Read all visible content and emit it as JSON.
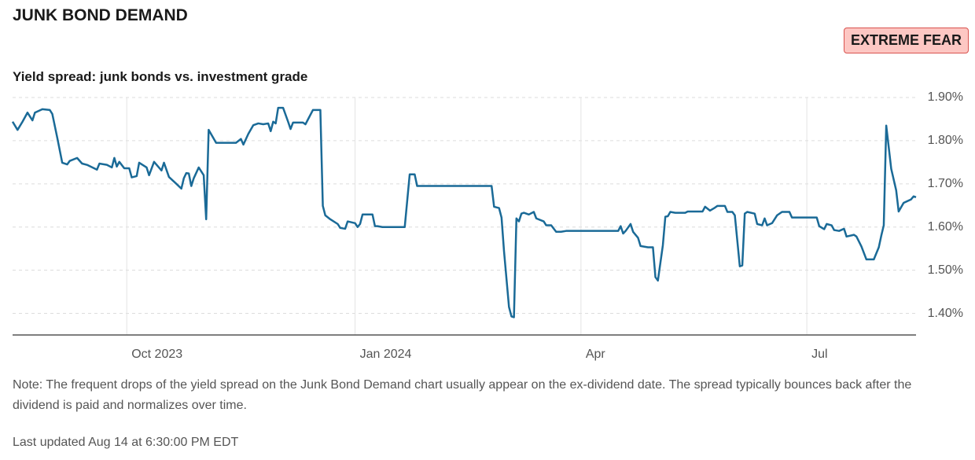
{
  "chart_data": {
    "type": "line",
    "title": "JUNK BOND DEMAND",
    "subtitle": "Yield spread: junk bonds vs. investment grade",
    "color": "#1a6a97",
    "grid": true,
    "xlim": [
      0,
      364
    ],
    "xticks": [
      {
        "value": 46,
        "label": "Oct 2023"
      },
      {
        "value": 138,
        "label": "Jan 2024"
      },
      {
        "value": 229,
        "label": "Apr"
      },
      {
        "value": 320,
        "label": "Jul"
      }
    ],
    "ylim": [
      1.35,
      1.9
    ],
    "yticks": [
      {
        "value": 1.4,
        "label": "1.40%"
      },
      {
        "value": 1.5,
        "label": "1.50%"
      },
      {
        "value": 1.6,
        "label": "1.60%"
      },
      {
        "value": 1.7,
        "label": "1.70%"
      },
      {
        "value": 1.8,
        "label": "1.80%"
      },
      {
        "value": 1.9,
        "label": "1.90%"
      }
    ],
    "x": [
      0,
      2,
      4,
      6,
      8,
      9,
      12,
      15,
      16,
      18,
      20,
      22,
      23,
      26,
      28,
      30,
      34,
      35,
      38,
      40,
      41,
      42,
      43,
      45,
      47,
      48,
      50,
      51,
      54,
      55,
      57,
      60,
      61,
      63,
      66,
      68,
      69,
      70,
      71,
      72,
      73,
      75,
      77,
      78,
      79,
      82,
      90,
      92,
      93,
      95,
      97,
      99,
      101,
      103,
      104,
      105,
      106,
      107,
      109,
      111,
      112,
      113,
      117,
      118,
      119,
      121,
      124,
      125,
      126,
      128,
      131,
      132,
      134,
      135,
      138,
      139,
      140,
      141,
      145,
      146,
      147,
      149,
      158,
      160,
      162,
      163,
      193,
      194,
      196,
      197,
      198,
      200,
      201,
      202,
      203,
      204,
      205,
      206,
      208,
      210,
      211,
      214,
      215,
      217,
      219,
      221,
      223,
      244,
      245,
      246,
      247,
      249,
      250,
      252,
      253,
      256,
      258,
      259,
      260,
      262,
      263,
      264,
      265,
      267,
      271,
      272,
      278,
      279,
      281,
      283,
      284,
      287,
      288,
      290,
      291,
      293,
      294,
      295,
      296,
      299,
      300,
      302,
      303,
      304,
      306,
      308,
      310,
      313,
      314,
      324,
      325,
      327,
      328,
      330,
      331,
      333,
      335,
      336,
      339,
      340,
      342,
      344,
      347,
      349,
      350,
      351,
      352,
      354,
      356,
      357,
      359,
      362,
      363,
      364
    ],
    "values": [
      1.844,
      1.825,
      1.844,
      1.865,
      1.847,
      1.865,
      1.873,
      1.871,
      1.862,
      1.807,
      1.749,
      1.745,
      1.753,
      1.76,
      1.747,
      1.744,
      1.733,
      1.747,
      1.744,
      1.738,
      1.76,
      1.74,
      1.751,
      1.736,
      1.736,
      1.715,
      1.718,
      1.749,
      1.738,
      1.72,
      1.751,
      1.731,
      1.749,
      1.716,
      1.7,
      1.689,
      1.713,
      1.725,
      1.724,
      1.695,
      1.713,
      1.738,
      1.72,
      1.618,
      1.825,
      1.795,
      1.795,
      1.804,
      1.791,
      1.816,
      1.836,
      1.84,
      1.838,
      1.84,
      1.822,
      1.844,
      1.84,
      1.876,
      1.876,
      1.844,
      1.827,
      1.842,
      1.842,
      1.838,
      1.849,
      1.871,
      1.871,
      1.649,
      1.627,
      1.618,
      1.607,
      1.598,
      1.596,
      1.613,
      1.609,
      1.6,
      1.607,
      1.629,
      1.629,
      1.602,
      1.602,
      1.6,
      1.6,
      1.722,
      1.722,
      1.695,
      1.695,
      1.647,
      1.644,
      1.622,
      1.544,
      1.415,
      1.393,
      1.391,
      1.62,
      1.613,
      1.631,
      1.633,
      1.629,
      1.635,
      1.62,
      1.613,
      1.604,
      1.604,
      1.589,
      1.589,
      1.591,
      1.591,
      1.602,
      1.585,
      1.591,
      1.607,
      1.589,
      1.575,
      1.556,
      1.553,
      1.553,
      1.484,
      1.476,
      1.558,
      1.624,
      1.625,
      1.635,
      1.633,
      1.633,
      1.636,
      1.636,
      1.647,
      1.638,
      1.645,
      1.649,
      1.649,
      1.635,
      1.635,
      1.627,
      1.509,
      1.511,
      1.631,
      1.635,
      1.631,
      1.607,
      1.604,
      1.62,
      1.604,
      1.609,
      1.627,
      1.635,
      1.635,
      1.622,
      1.622,
      1.602,
      1.595,
      1.607,
      1.604,
      1.593,
      1.591,
      1.596,
      1.578,
      1.582,
      1.578,
      1.555,
      1.525,
      1.525,
      1.553,
      1.58,
      1.604,
      1.835,
      1.735,
      1.685,
      1.636,
      1.656,
      1.664,
      1.671,
      1.669
    ]
  },
  "badge": "EXTREME FEAR",
  "note": "Note: The frequent drops of the yield spread on the Junk Bond Demand chart usually appear on the ex-dividend date. The spread typically bounces back after the dividend is paid and normalizes over time.",
  "last_updated": "Last updated Aug 14 at 6:30:00 PM EDT"
}
